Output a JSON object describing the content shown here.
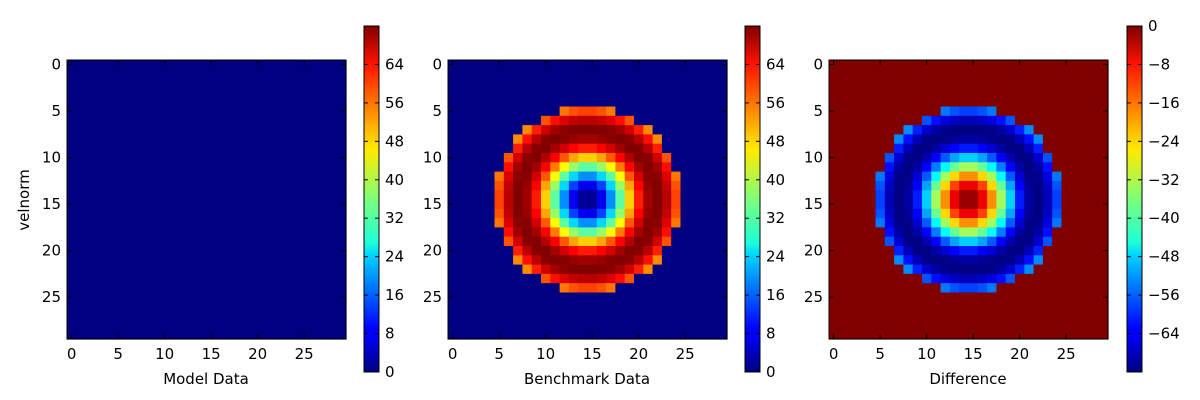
{
  "chart_data": [
    {
      "type": "heatmap",
      "title": "",
      "xlabel": "Model Data",
      "ylabel": "velnorm",
      "grid_size": [
        30,
        30
      ],
      "x_ticks": [
        0,
        5,
        10,
        15,
        20,
        25
      ],
      "y_ticks": [
        0,
        5,
        10,
        15,
        20,
        25
      ],
      "xlim": [
        -0.5,
        29.5
      ],
      "ylim": [
        29.5,
        -0.5
      ],
      "field": "zero",
      "colormap": "jet",
      "color_range": [
        0,
        72
      ],
      "colorbar_ticks": [
        0,
        8,
        16,
        24,
        32,
        40,
        48,
        56,
        64
      ]
    },
    {
      "type": "heatmap",
      "title": "",
      "xlabel": "Benchmark Data",
      "ylabel": "",
      "grid_size": [
        30,
        30
      ],
      "x_ticks": [
        0,
        5,
        10,
        15,
        20,
        25
      ],
      "y_ticks": [
        0,
        5,
        10,
        15,
        20,
        25
      ],
      "xlim": [
        -0.5,
        29.5
      ],
      "ylim": [
        29.5,
        -0.5
      ],
      "field": "ring",
      "center": [
        14.5,
        14.5
      ],
      "radius_cutoff": 10,
      "ring_radius": 7.4,
      "ring_peak": 72,
      "colormap": "jet",
      "color_range": [
        0,
        72
      ],
      "colorbar_ticks": [
        0,
        8,
        16,
        24,
        32,
        40,
        48,
        56,
        64
      ]
    },
    {
      "type": "heatmap",
      "title": "",
      "xlabel": "Difference",
      "ylabel": "",
      "grid_size": [
        30,
        30
      ],
      "x_ticks": [
        0,
        5,
        10,
        15,
        20,
        25
      ],
      "y_ticks": [
        0,
        5,
        10,
        15,
        20,
        25
      ],
      "xlim": [
        -0.5,
        29.5
      ],
      "ylim": [
        29.5,
        -0.5
      ],
      "field": "model_minus_benchmark",
      "colormap": "jet",
      "color_range": [
        -72,
        0
      ],
      "colorbar_ticks": [
        -64,
        -56,
        -48,
        -40,
        -32,
        -24,
        -16,
        -8,
        0
      ]
    }
  ]
}
